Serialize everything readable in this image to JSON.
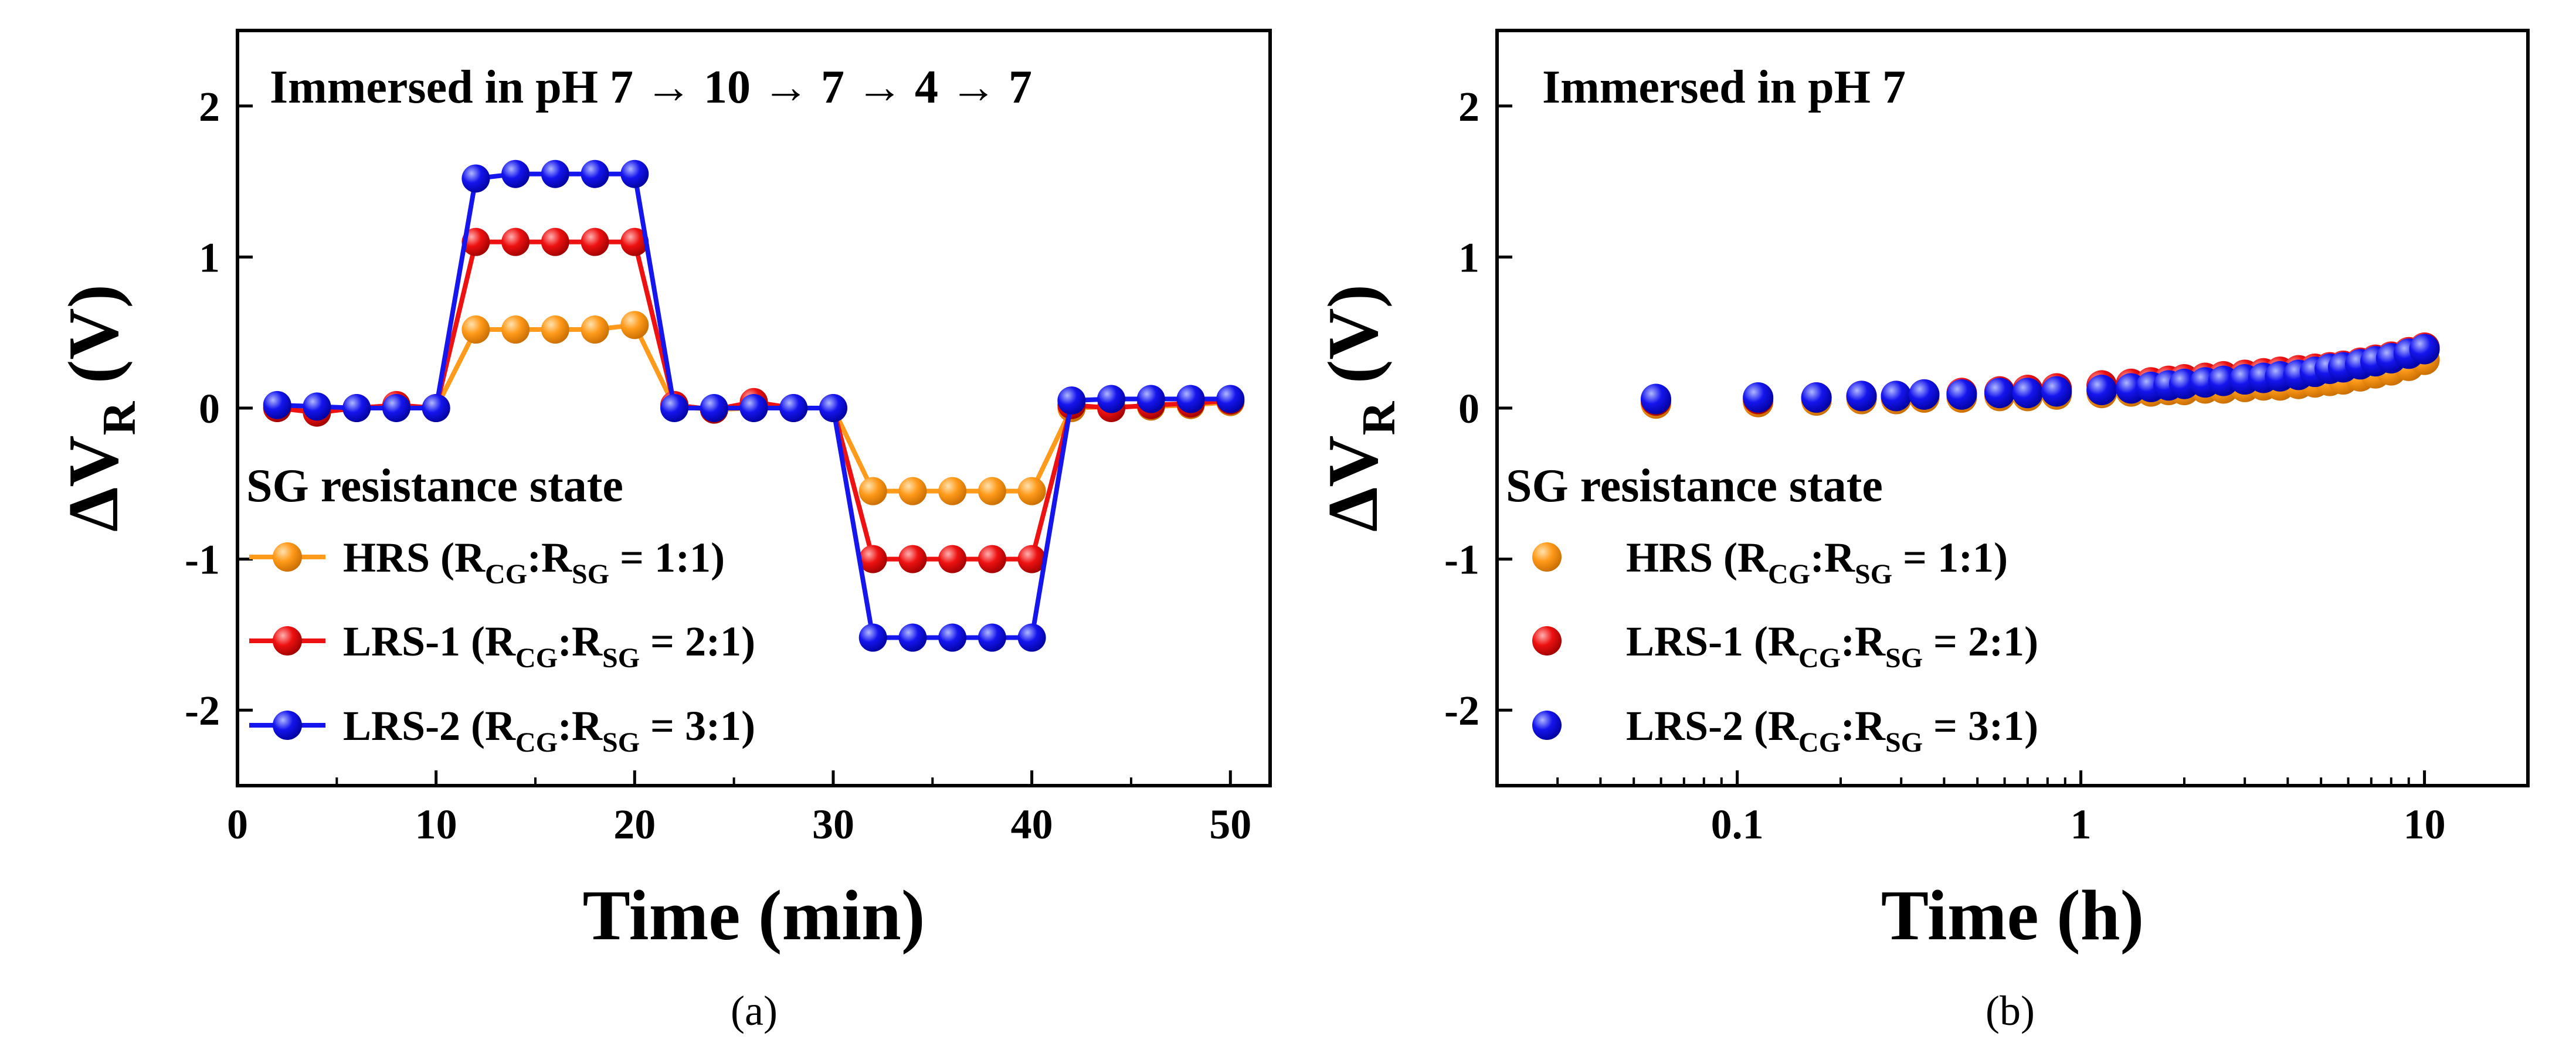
{
  "colors": {
    "hrs": "#ff9a1a",
    "lrs1": "#ee1111",
    "lrs2": "#1515ee"
  },
  "chart_data": [
    {
      "type": "line",
      "panel": "(a)",
      "annotation": "Immersed in pH 7 → 10 → 7 → 4 → 7",
      "xlabel": "Time (min)",
      "ylabel_main": "ΔV",
      "ylabel_sub": "R",
      "ylabel_unit": " (V)",
      "xlim": [
        0,
        52
      ],
      "ylim": [
        -2.5,
        2.5
      ],
      "x_ticks": [
        0,
        10,
        20,
        30,
        40,
        50
      ],
      "x_tick_labels": [
        "0",
        "10",
        "20",
        "30",
        "40",
        "50"
      ],
      "y_ticks": [
        2,
        1,
        0,
        -1,
        -2
      ],
      "y_tick_labels": [
        "2",
        "1",
        "0",
        "-1",
        "-2"
      ],
      "legend_title": "SG resistance state",
      "legend_placement": "lower-left",
      "x": [
        2,
        4,
        6,
        8,
        10,
        12,
        14,
        16,
        18,
        20,
        22,
        24,
        26,
        28,
        30,
        32,
        34,
        36,
        38,
        40,
        42,
        44,
        46,
        48,
        50
      ],
      "series": [
        {
          "key": "hrs",
          "name": "HRS",
          "ratio": "1:1",
          "values": [
            0.0,
            -0.02,
            0.0,
            0.01,
            0.0,
            0.52,
            0.52,
            0.52,
            0.52,
            0.55,
            0.01,
            -0.01,
            0.0,
            0.0,
            0.0,
            -0.55,
            -0.55,
            -0.55,
            -0.55,
            -0.55,
            0.0,
            0.01,
            0.01,
            0.02,
            0.04
          ]
        },
        {
          "key": "lrs1",
          "name": "LRS-1",
          "ratio": "2:1",
          "values": [
            0.0,
            -0.03,
            0.0,
            0.02,
            0.0,
            1.1,
            1.1,
            1.1,
            1.1,
            1.1,
            0.02,
            -0.01,
            0.04,
            0.0,
            0.0,
            -1.0,
            -1.0,
            -1.0,
            -1.0,
            -1.0,
            0.02,
            0.0,
            0.02,
            0.03,
            0.05
          ]
        },
        {
          "key": "lrs2",
          "name": "LRS-2",
          "ratio": "3:1",
          "values": [
            0.02,
            0.01,
            0.0,
            0.0,
            0.0,
            1.52,
            1.55,
            1.55,
            1.55,
            1.55,
            0.0,
            0.0,
            0.0,
            0.0,
            0.0,
            -1.52,
            -1.52,
            -1.52,
            -1.52,
            -1.52,
            0.05,
            0.06,
            0.06,
            0.06,
            0.06
          ]
        }
      ]
    },
    {
      "type": "scatter",
      "panel": "(b)",
      "annotation": "Immersed in pH 7",
      "xlabel": "Time (h)",
      "ylabel_main": "ΔV",
      "ylabel_sub": "R",
      "ylabel_unit": " (V)",
      "x_scale": "log",
      "xlim": [
        0.02,
        20
      ],
      "ylim": [
        -2.5,
        2.5
      ],
      "x_ticks": [
        0.1,
        1,
        10
      ],
      "x_tick_labels": [
        "0.1",
        "1",
        "10"
      ],
      "y_ticks": [
        2,
        1,
        0,
        -1,
        -2
      ],
      "y_tick_labels": [
        "2",
        "1",
        "0",
        "-1",
        "-2"
      ],
      "legend_title": "SG resistance state",
      "legend_placement": "lower-left",
      "x": [
        0.058,
        0.115,
        0.17,
        0.23,
        0.29,
        0.35,
        0.45,
        0.58,
        0.7,
        0.85,
        1.15,
        1.4,
        1.6,
        1.8,
        2.0,
        2.3,
        2.6,
        3.0,
        3.4,
        3.8,
        4.3,
        4.8,
        5.3,
        5.8,
        6.5,
        7.2,
        8.0,
        9.0,
        10.0
      ],
      "series": [
        {
          "key": "hrs",
          "name": "HRS",
          "ratio": "1:1",
          "values": [
            0.03,
            0.04,
            0.05,
            0.06,
            0.06,
            0.07,
            0.07,
            0.08,
            0.08,
            0.09,
            0.1,
            0.11,
            0.11,
            0.12,
            0.12,
            0.13,
            0.13,
            0.14,
            0.15,
            0.15,
            0.16,
            0.17,
            0.18,
            0.19,
            0.21,
            0.23,
            0.25,
            0.28,
            0.32
          ]
        },
        {
          "key": "lrs1",
          "name": "LRS-1",
          "ratio": "2:1",
          "values": [
            0.05,
            0.06,
            0.07,
            0.08,
            0.08,
            0.09,
            0.1,
            0.11,
            0.12,
            0.13,
            0.15,
            0.16,
            0.17,
            0.18,
            0.19,
            0.2,
            0.21,
            0.22,
            0.23,
            0.24,
            0.25,
            0.26,
            0.27,
            0.28,
            0.3,
            0.32,
            0.34,
            0.37,
            0.4
          ]
        },
        {
          "key": "lrs2",
          "name": "LRS-2",
          "ratio": "3:1",
          "values": [
            0.06,
            0.07,
            0.07,
            0.08,
            0.08,
            0.09,
            0.09,
            0.1,
            0.1,
            0.11,
            0.12,
            0.13,
            0.14,
            0.15,
            0.16,
            0.17,
            0.18,
            0.19,
            0.2,
            0.21,
            0.22,
            0.24,
            0.26,
            0.27,
            0.29,
            0.31,
            0.33,
            0.36,
            0.39
          ]
        }
      ]
    }
  ],
  "legend_text": {
    "open": " (R",
    "cg": "CG",
    "colon": ":R",
    "sg": "SG",
    "eq": " = ",
    "close": ")"
  }
}
